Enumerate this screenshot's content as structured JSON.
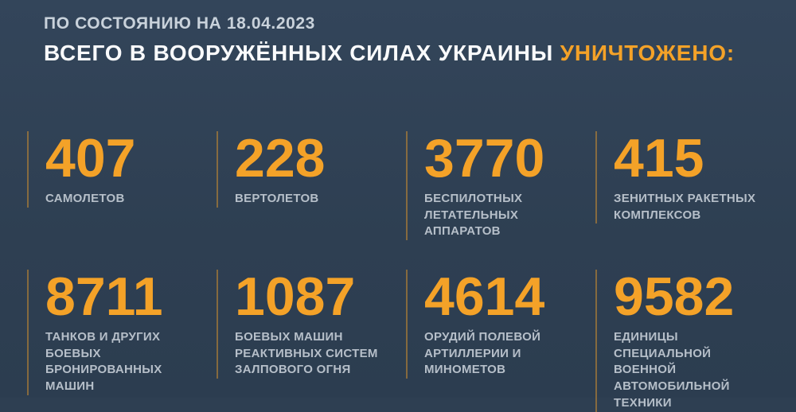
{
  "page": {
    "background_color": "#2e3f52",
    "accent_color": "#f4a228",
    "label_color": "#b6bfc9"
  },
  "header": {
    "date_line": "ПО СОСТОЯНИЮ НА 18.04.2023",
    "title_main": "ВСЕГО В ВООРУЖЁННЫХ СИЛАХ УКРАИНЫ ",
    "title_accent": "УНИЧТОЖЕНО:"
  },
  "stats": [
    {
      "value": "407",
      "label": "САМОЛЕТОВ"
    },
    {
      "value": "228",
      "label": "ВЕРТОЛЕТОВ"
    },
    {
      "value": "3770",
      "label": "БЕСПИЛОТНЫХ\nЛЕТАТЕЛЬНЫХ АППАРАТОВ"
    },
    {
      "value": "415",
      "label": "ЗЕНИТНЫХ РАКЕТНЫХ\nКОМПЛЕКСОВ"
    },
    {
      "value": "8711",
      "label": "ТАНКОВ И ДРУГИХ БОЕВЫХ\nБРОНИРОВАННЫХ МАШИН"
    },
    {
      "value": "1087",
      "label": "БОЕВЫХ МАШИН\nРЕАКТИВНЫХ СИСТЕМ\nЗАЛПОВОГО ОГНЯ"
    },
    {
      "value": "4614",
      "label": "ОРУДИЙ ПОЛЕВОЙ\nАРТИЛЛЕРИИ И МИНОМЕТОВ"
    },
    {
      "value": "9582",
      "label": "ЕДИНИЦЫ СПЕЦИАЛЬНОЙ\nВОЕННОЙ АВТОМОБИЛЬНОЙ\nТЕХНИКИ"
    }
  ],
  "chart_data": {
    "type": "table",
    "title": "ВСЕГО В ВООРУЖЁННЫХ СИЛАХ УКРАИНЫ УНИЧТОЖЕНО:",
    "subtitle": "ПО СОСТОЯНИЮ НА 18.04.2023",
    "categories": [
      "САМОЛЕТОВ",
      "ВЕРТОЛЕТОВ",
      "БЕСПИЛОТНЫХ ЛЕТАТЕЛЬНЫХ АППАРАТОВ",
      "ЗЕНИТНЫХ РАКЕТНЫХ КОМПЛЕКСОВ",
      "ТАНКОВ И ДРУГИХ БОЕВЫХ БРОНИРОВАННЫХ МАШИН",
      "БОЕВЫХ МАШИН РЕАКТИВНЫХ СИСТЕМ ЗАЛПОВОГО ОГНЯ",
      "ОРУДИЙ ПОЛЕВОЙ АРТИЛЛЕРИИ И МИНОМЕТОВ",
      "ЕДИНИЦЫ СПЕЦИАЛЬНОЙ ВОЕННОЙ АВТОМОБИЛЬНОЙ ТЕХНИКИ"
    ],
    "values": [
      407,
      228,
      3770,
      415,
      8711,
      1087,
      4614,
      9582
    ],
    "layout": "2 rows x 4 columns grid, value above label, vertical divider left of each cell"
  }
}
